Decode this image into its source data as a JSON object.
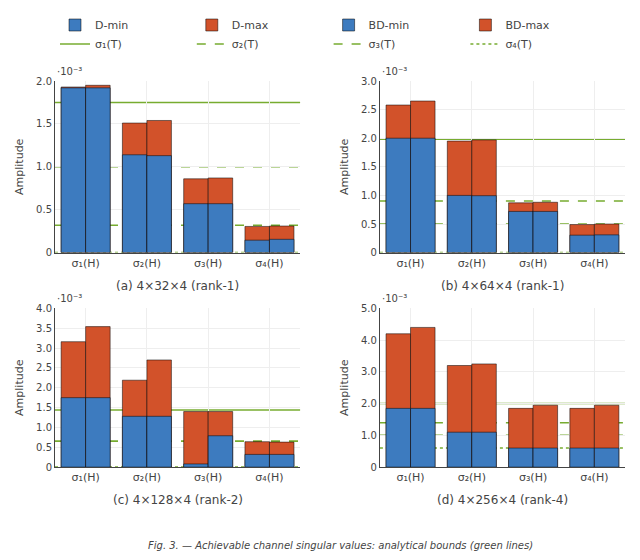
{
  "chart_data": [
    {
      "type": "bar",
      "title": "(a) 4×32×4 (rank-1)",
      "ylabel": "Amplitude",
      "grid": true,
      "annotations": [
        "·10⁻³"
      ],
      "categories": [
        "σ₁(H)",
        "σ₂(H)",
        "σ₃(H)",
        "σ₄(H)"
      ],
      "ylim": [
        0,
        0.002
      ],
      "yticks": [
        0,
        {
          "value": 0.0005,
          "label": "0.5"
        },
        {
          "value": 0.001,
          "label": "1.0"
        },
        {
          "value": 0.0015,
          "label": "1.5"
        },
        {
          "value": 0.002,
          "label": "2.0"
        }
      ],
      "series": [
        {
          "name": "D-min",
          "color": "#3d7bbf",
          "values": [
            0.00192,
            0.00114,
            0.00057,
            0.000145
          ]
        },
        {
          "name": "D-max",
          "color": "#d2522a",
          "values": [
            0.00193,
            0.00151,
            0.00086,
            0.000305
          ]
        },
        {
          "name": "BD-min",
          "color": "#3d7bbf",
          "values": [
            0.00192,
            0.00113,
            0.00057,
            0.000155
          ]
        },
        {
          "name": "BD-max",
          "color": "#d2522a",
          "values": [
            0.00195,
            0.00154,
            0.00087,
            0.00031
          ]
        },
        {
          "name": "σ₁(T)",
          "type": "hline",
          "color": "#77ac30",
          "line_style": "solid",
          "y": 0.00175
        },
        {
          "name": "σ₂(T)",
          "type": "hline",
          "color": "#77ac30",
          "line_style": "dashed",
          "y": 0.001
        },
        {
          "name": "σ₃(T)",
          "type": "hline",
          "color": "#77ac30",
          "line_style": "dashed",
          "y": 0.00032
        },
        {
          "name": "σ₄(T)",
          "type": "hline",
          "color": "#77ac30",
          "line_style": "dotted",
          "y": 0.0
        }
      ]
    },
    {
      "type": "bar",
      "title": "(b) 4×64×4 (rank-1)",
      "ylabel": "Amplitude",
      "grid": true,
      "annotations": [
        "·10⁻³"
      ],
      "categories": [
        "σ₁(H)",
        "σ₂(H)",
        "σ₃(H)",
        "σ₄(H)"
      ],
      "ylim": [
        0,
        0.003
      ],
      "yticks": [
        0,
        {
          "value": 0.0005,
          "label": "0.5"
        },
        {
          "value": 0.001,
          "label": "1.0"
        },
        {
          "value": 0.0015,
          "label": "1.5"
        },
        {
          "value": 0.002,
          "label": "2.0"
        },
        {
          "value": 0.0025,
          "label": "2.5"
        },
        {
          "value": 0.003,
          "label": "3.0"
        }
      ],
      "series": [
        {
          "name": "D-min",
          "color": "#3d7bbf",
          "values": [
            0.002,
            0.001,
            0.00072,
            0.000305
          ]
        },
        {
          "name": "D-max",
          "color": "#d2522a",
          "values": [
            0.00258,
            0.00195,
            0.00087,
            0.00049
          ]
        },
        {
          "name": "BD-min",
          "color": "#3d7bbf",
          "values": [
            0.002,
            0.000995,
            0.00072,
            0.00031
          ]
        },
        {
          "name": "BD-max",
          "color": "#d2522a",
          "values": [
            0.00265,
            0.00197,
            0.00088,
            0.0005
          ]
        },
        {
          "name": "σ₁(T)",
          "type": "hline",
          "color": "#77ac30",
          "line_style": "solid",
          "y": 0.00198
        },
        {
          "name": "σ₂(T)",
          "type": "hline",
          "color": "#77ac30",
          "line_style": "dashed",
          "y": 0.0009
        },
        {
          "name": "σ₃(T)",
          "type": "hline",
          "color": "#77ac30",
          "line_style": "dashed",
          "y": 0.0005
        },
        {
          "name": "σ₄(T)",
          "type": "hline",
          "color": "#77ac30",
          "line_style": "dotted",
          "y": 0.0
        }
      ]
    },
    {
      "type": "bar",
      "title": "(c) 4×128×4 (rank-2)",
      "ylabel": "Amplitude",
      "grid": true,
      "annotations": [
        "·10⁻³"
      ],
      "categories": [
        "σ₁(H)",
        "σ₂(H)",
        "σ₃(H)",
        "σ₄(H)"
      ],
      "ylim": [
        0,
        0.004
      ],
      "yticks": [
        0,
        {
          "value": 0.0005,
          "label": "0.5"
        },
        {
          "value": 0.001,
          "label": "1.0"
        },
        {
          "value": 0.0015,
          "label": "1.5"
        },
        {
          "value": 0.002,
          "label": "2.0"
        },
        {
          "value": 0.0025,
          "label": "2.5"
        },
        {
          "value": 0.003,
          "label": "3.0"
        },
        {
          "value": 0.0035,
          "label": "3.5"
        },
        {
          "value": 0.004,
          "label": "4.0"
        }
      ],
      "series": [
        {
          "name": "D-min",
          "color": "#3d7bbf",
          "values": [
            0.00175,
            0.00128,
            8e-05,
            0.00032
          ]
        },
        {
          "name": "D-max",
          "color": "#d2522a",
          "values": [
            0.00316,
            0.00219,
            0.0014,
            0.00064
          ]
        },
        {
          "name": "BD-min",
          "color": "#3d7bbf",
          "values": [
            0.00175,
            0.00128,
            0.00079,
            0.00032
          ]
        },
        {
          "name": "BD-max",
          "color": "#d2522a",
          "values": [
            0.00354,
            0.0027,
            0.0014,
            0.00063
          ]
        },
        {
          "name": "σ₁(T)",
          "type": "hline",
          "color": "#77ac30",
          "line_style": "solid",
          "y": 0.00144
        },
        {
          "name": "σ₂(T)",
          "type": "hline",
          "color": "#77ac30",
          "line_style": "dashed",
          "y": 0.00065
        },
        {
          "name": "σ₃(T)",
          "type": "hline",
          "color": "#77ac30",
          "line_style": "dashed",
          "y": 0.00065
        },
        {
          "name": "σ₄(T)",
          "type": "hline",
          "color": "#77ac30",
          "line_style": "dotted",
          "y": 0.0
        }
      ]
    },
    {
      "type": "bar",
      "title": "(d) 4×256×4 (rank-4)",
      "ylabel": "Amplitude",
      "grid": true,
      "annotations": [
        "·10⁻³"
      ],
      "categories": [
        "σ₁(H)",
        "σ₂(H)",
        "σ₃(H)",
        "σ₄(H)"
      ],
      "ylim": [
        0,
        0.005
      ],
      "yticks": [
        0,
        {
          "value": 0.001,
          "label": "1.0"
        },
        {
          "value": 0.002,
          "label": "2.0"
        },
        {
          "value": 0.003,
          "label": "3.0"
        },
        {
          "value": 0.004,
          "label": "4.0"
        },
        {
          "value": 0.005,
          "label": "5.0"
        }
      ],
      "series": [
        {
          "name": "D-min",
          "color": "#3d7bbf",
          "values": [
            0.00185,
            0.0011,
            0.0006,
            0.0006
          ]
        },
        {
          "name": "D-max",
          "color": "#d2522a",
          "values": [
            0.0042,
            0.0032,
            0.00185,
            0.00185
          ]
        },
        {
          "name": "BD-min",
          "color": "#3d7bbf",
          "values": [
            0.00185,
            0.0011,
            0.0006,
            0.0006
          ]
        },
        {
          "name": "BD-max",
          "color": "#d2522a",
          "values": [
            0.0044,
            0.00325,
            0.00195,
            0.00195
          ]
        },
        {
          "name": "σ₁(T)",
          "type": "hline",
          "color": "#77ac30",
          "line_style": "solid",
          "y": 0.002
        },
        {
          "name": "σ₂(T)",
          "type": "hline",
          "color": "#77ac30",
          "line_style": "dashed",
          "y": 0.0014
        },
        {
          "name": "σ₃(T)",
          "type": "hline",
          "color": "#77ac30",
          "line_style": "dashed",
          "y": 0.001
        },
        {
          "name": "σ₄(T)",
          "type": "hline",
          "color": "#77ac30",
          "line_style": "dotted",
          "y": 0.0006
        }
      ]
    }
  ],
  "legend": "top",
  "annotations": [
    "Fig. 3. — Achievable channel singular values: analytical bounds (green lines)"
  ]
}
